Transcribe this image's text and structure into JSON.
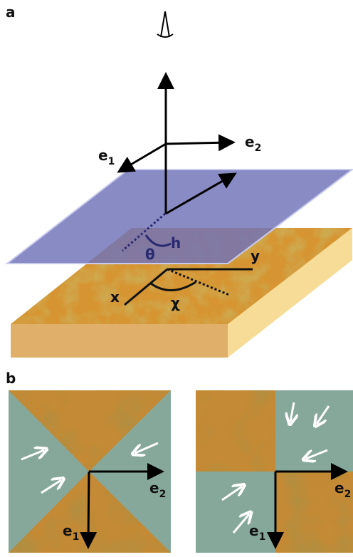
{
  "panel_a": {
    "label": "a",
    "e1": {
      "base": "e",
      "sub": "1"
    },
    "e2": {
      "base": "e",
      "sub": "2"
    },
    "h": "h",
    "theta": "θ",
    "chi": "χ",
    "x": "x",
    "y": "y"
  },
  "panel_b": {
    "label": "b",
    "left": {
      "e1": {
        "base": "e",
        "sub": "1"
      },
      "e2": {
        "base": "e",
        "sub": "2"
      }
    },
    "right": {
      "e1": {
        "base": "e",
        "sub": "1"
      },
      "e2": {
        "base": "e",
        "sub": "2"
      }
    }
  }
}
